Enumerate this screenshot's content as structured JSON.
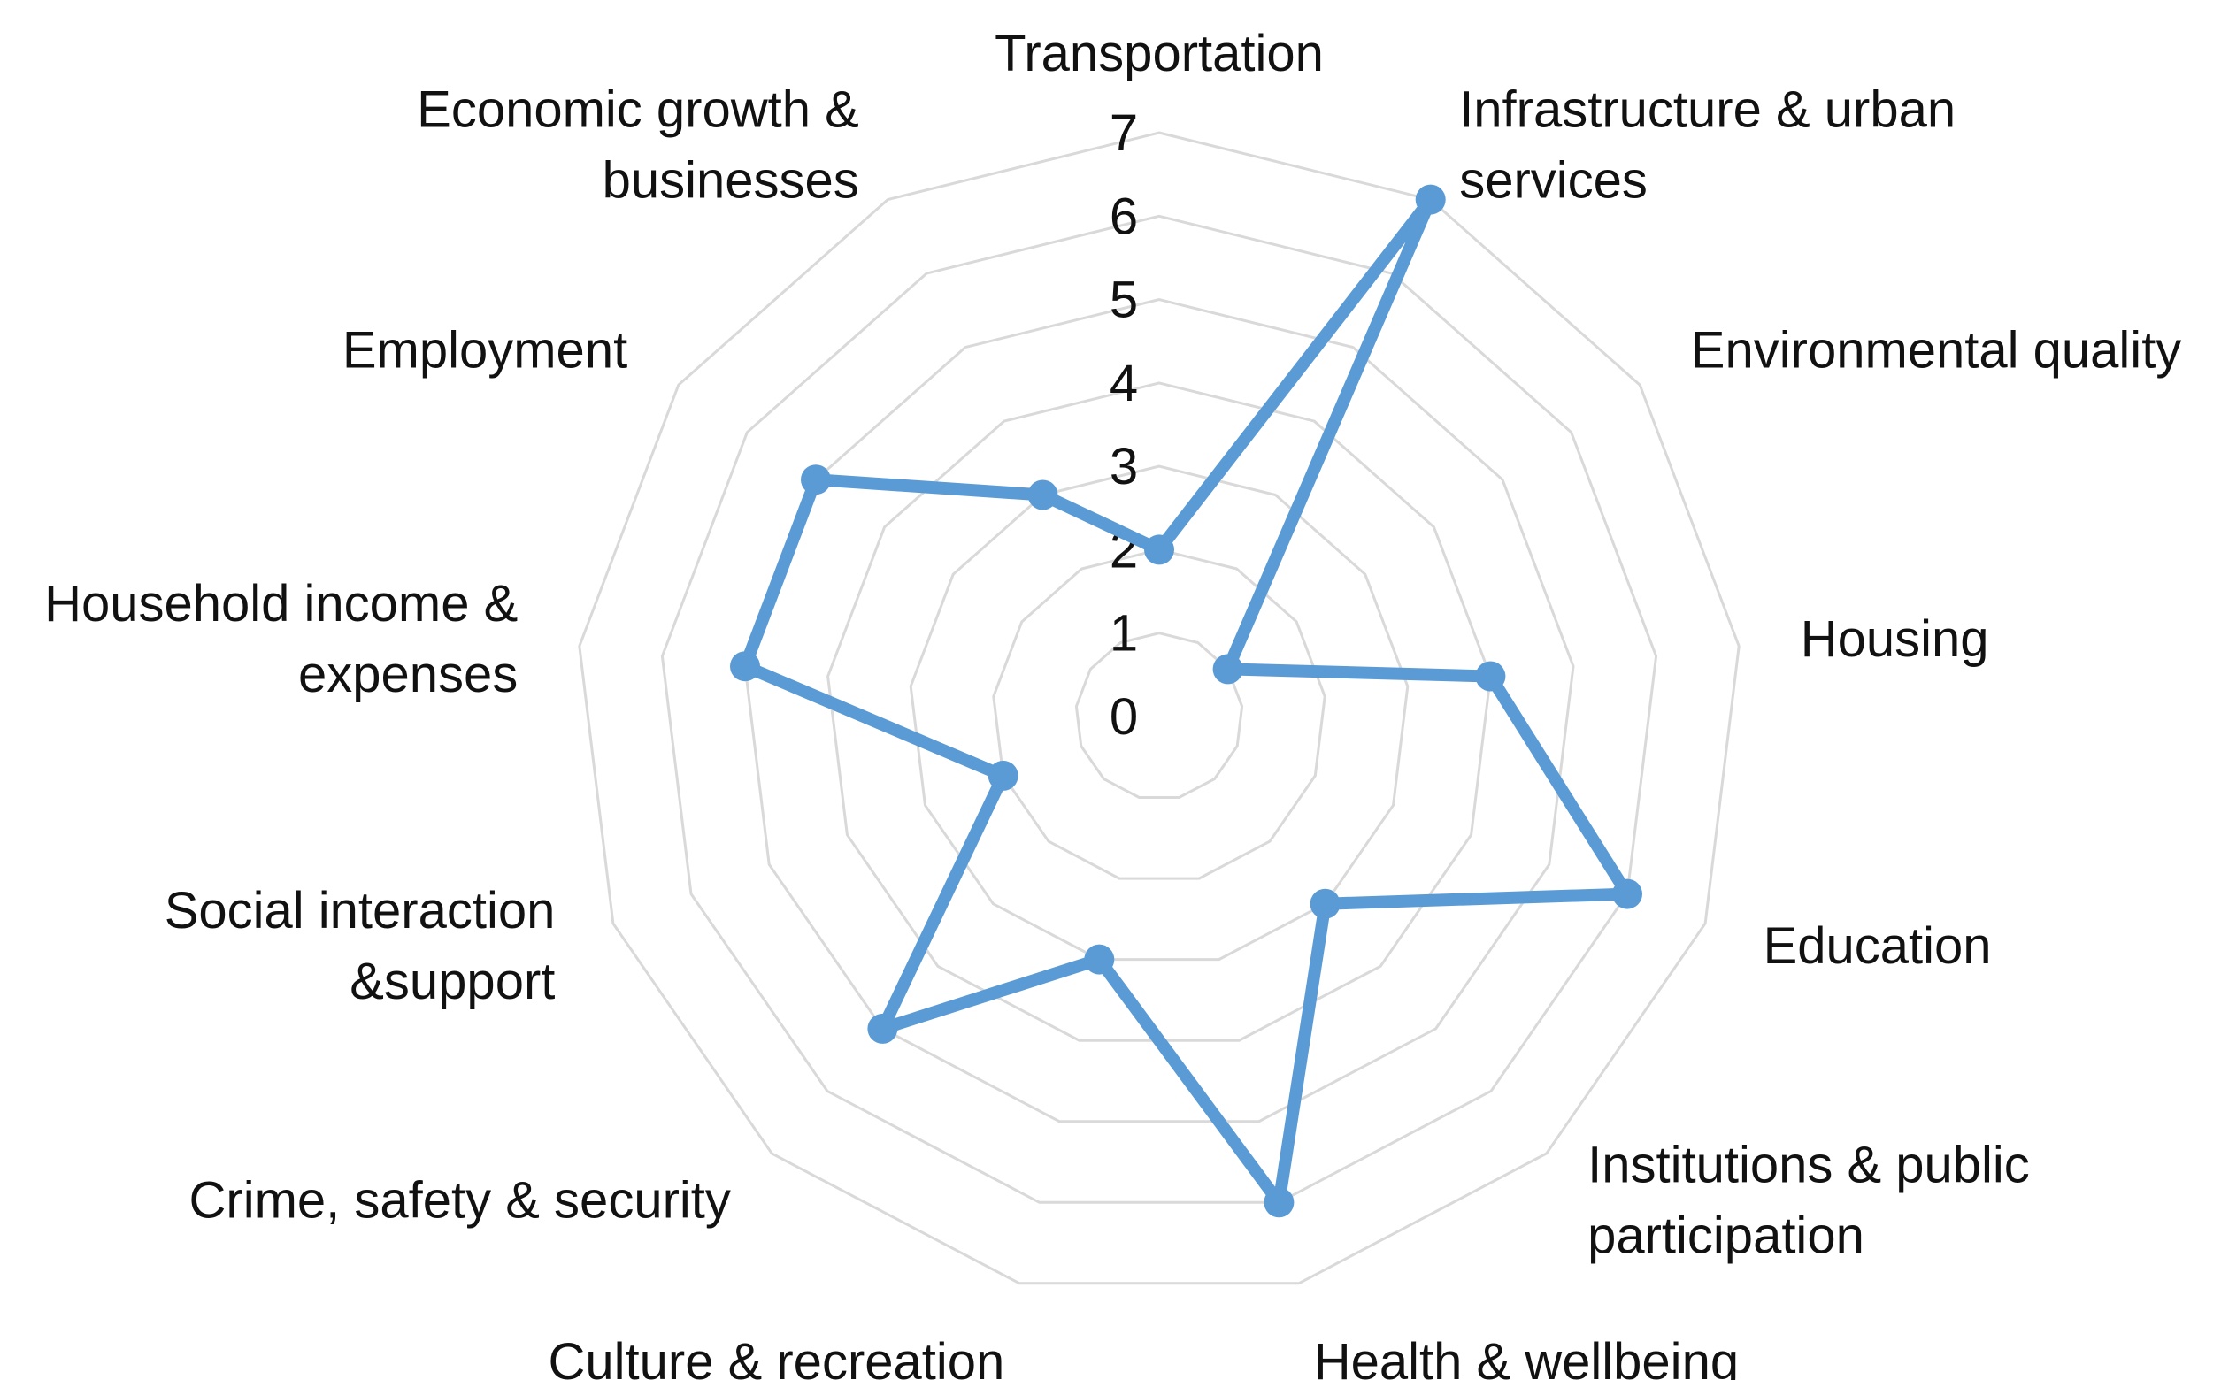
{
  "chart_data": {
    "type": "radar",
    "title": "",
    "categories": [
      "Transportation",
      "Infrastructure & urban services",
      "Environmental quality",
      "Housing",
      "Education",
      "Institutions & public participation",
      "Health & wellbeing",
      "Culture & recreation",
      "Crime, safety & security",
      "Social interaction &support",
      "Household income & expenses",
      "Employment",
      "Economic growth & businesses"
    ],
    "category_lines": [
      [
        "Transportation"
      ],
      [
        "Infrastructure & urban",
        "services"
      ],
      [
        "Environmental quality"
      ],
      [
        "Housing"
      ],
      [
        "Education"
      ],
      [
        "Institutions & public",
        "participation"
      ],
      [
        "Health & wellbeing"
      ],
      [
        "Culture & recreation"
      ],
      [
        "Crime, safety & security"
      ],
      [
        "Social interaction",
        "&support"
      ],
      [
        "Household income &",
        "expenses"
      ],
      [
        "Employment"
      ],
      [
        "Economic growth &",
        "businesses"
      ]
    ],
    "series": [
      {
        "values": [
          2,
          7,
          1,
          4,
          6,
          3,
          6,
          3,
          5,
          2,
          5,
          5,
          3
        ]
      }
    ],
    "rlim": [
      0,
      7
    ],
    "ticks": [
      "0",
      "1",
      "2",
      "3",
      "4",
      "5",
      "6",
      "7"
    ],
    "grid": true,
    "legend": "none",
    "colors": {
      "series": "#5b9bd5",
      "grid": "#d9d9d9",
      "text": "#111111"
    }
  }
}
